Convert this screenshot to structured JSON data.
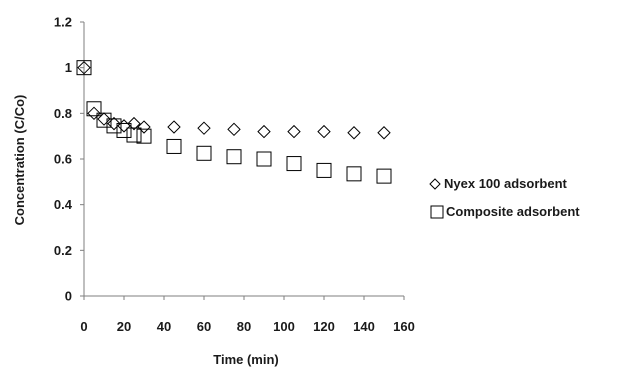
{
  "chart_data": {
    "type": "scatter",
    "title": "",
    "xlabel": "Time (min)",
    "ylabel": "Concentration (C/Co)",
    "xlim": [
      0,
      160
    ],
    "ylim": [
      0,
      1.2
    ],
    "x_ticks": [
      "0",
      "20",
      "40",
      "60",
      "80",
      "100",
      "120",
      "140",
      "160"
    ],
    "y_ticks": [
      "0",
      "0.2",
      "0.4",
      "0.6",
      "0.8",
      "1",
      "1.2"
    ],
    "grid": false,
    "legend_position": "right",
    "series": [
      {
        "name": "Nyex 100 adsorbent",
        "marker": "diamond",
        "color": "#000000",
        "points": [
          [
            0,
            1.0
          ],
          [
            5,
            0.8
          ],
          [
            10,
            0.775
          ],
          [
            15,
            0.755
          ],
          [
            20,
            0.745
          ],
          [
            25,
            0.755
          ],
          [
            30,
            0.74
          ],
          [
            45,
            0.74
          ],
          [
            60,
            0.735
          ],
          [
            75,
            0.73
          ],
          [
            90,
            0.72
          ],
          [
            105,
            0.72
          ],
          [
            120,
            0.72
          ],
          [
            135,
            0.715
          ],
          [
            150,
            0.715
          ]
        ]
      },
      {
        "name": "Composite adsorbent",
        "marker": "square",
        "color": "#000000",
        "points": [
          [
            0,
            1.0
          ],
          [
            5,
            0.82
          ],
          [
            10,
            0.77
          ],
          [
            15,
            0.745
          ],
          [
            20,
            0.725
          ],
          [
            25,
            0.705
          ],
          [
            30,
            0.7
          ],
          [
            45,
            0.655
          ],
          [
            60,
            0.625
          ],
          [
            75,
            0.61
          ],
          [
            90,
            0.6
          ],
          [
            105,
            0.58
          ],
          [
            120,
            0.55
          ],
          [
            135,
            0.535
          ],
          [
            150,
            0.525
          ]
        ]
      }
    ]
  }
}
